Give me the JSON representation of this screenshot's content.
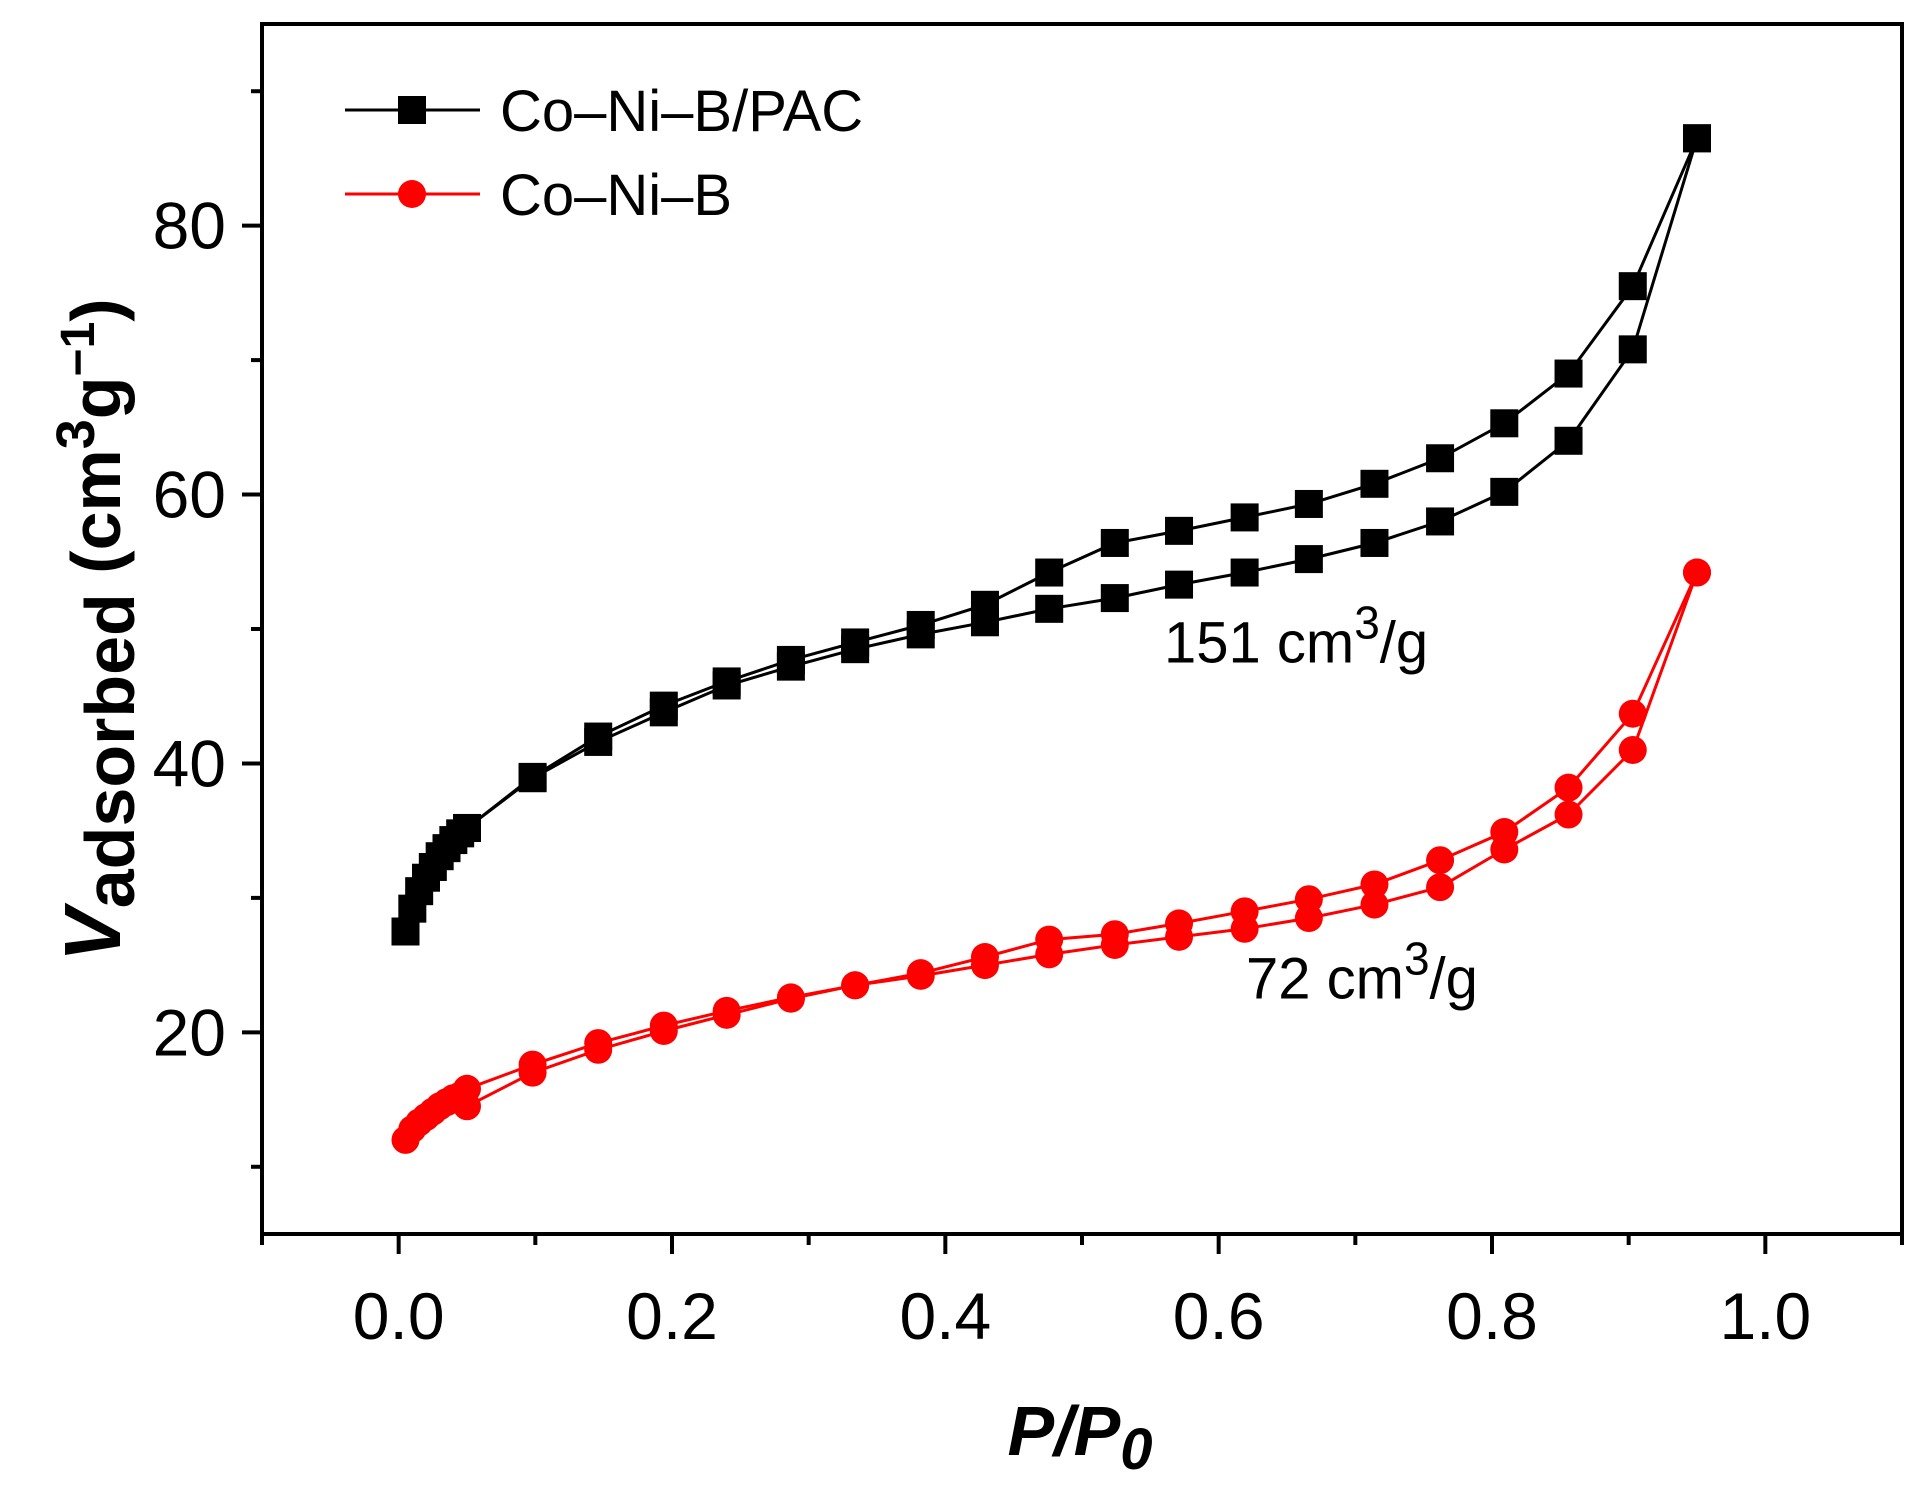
{
  "chart_data": {
    "type": "line",
    "title": "",
    "xlabel": {
      "main": "P/P",
      "sub": "0"
    },
    "ylabel": {
      "main": "V",
      "sub": "adsorbed",
      "unit": " (cm",
      "sup1": "3",
      "unit2": "g",
      "sup2": "−1",
      "close": ")"
    },
    "xlim": [
      -0.1,
      1.1
    ],
    "ylim": [
      5,
      95
    ],
    "x_ticks": [
      0.0,
      0.2,
      0.4,
      0.6,
      0.8,
      1.0
    ],
    "x_tick_labels": [
      "0.0",
      "0.2",
      "0.4",
      "0.6",
      "0.8",
      "1.0"
    ],
    "x_minor_ticks": [
      -0.1,
      0.1,
      0.3,
      0.5,
      0.7,
      0.9,
      1.1
    ],
    "y_ticks": [
      20,
      40,
      60,
      80
    ],
    "y_tick_labels": [
      "20",
      "40",
      "60",
      "80"
    ],
    "y_minor_ticks": [
      10,
      30,
      50,
      70,
      90
    ],
    "legend": {
      "position": "top-left"
    },
    "series": [
      {
        "name": "Co–Ni–B/PAC",
        "color": "#000000",
        "marker": "square",
        "adsorption": {
          "x": [
            0.005,
            0.01,
            0.015,
            0.02,
            0.025,
            0.03,
            0.035,
            0.04,
            0.045,
            0.05,
            0.098,
            0.146,
            0.194,
            0.24,
            0.287,
            0.334,
            0.382,
            0.429,
            0.476,
            0.524,
            0.571,
            0.619,
            0.666,
            0.714,
            0.762,
            0.809,
            0.856,
            0.903,
            0.95
          ],
          "y": [
            27.5,
            29.2,
            30.5,
            31.5,
            32.3,
            33.1,
            33.7,
            34.3,
            34.8,
            35.2,
            38.9,
            41.6,
            43.8,
            45.8,
            47.2,
            48.5,
            49.6,
            50.5,
            51.5,
            52.3,
            53.3,
            54.2,
            55.2,
            56.4,
            58.0,
            60.2,
            64.0,
            70.8,
            86.5
          ]
        },
        "desorption": {
          "x": [
            0.95,
            0.903,
            0.856,
            0.809,
            0.762,
            0.714,
            0.666,
            0.619,
            0.571,
            0.524,
            0.476,
            0.429,
            0.382,
            0.334,
            0.287,
            0.24,
            0.194,
            0.146,
            0.098,
            0.05
          ],
          "y": [
            86.5,
            75.5,
            69.0,
            65.3,
            62.7,
            60.8,
            59.3,
            58.3,
            57.3,
            56.4,
            54.2,
            51.8,
            50.3,
            49.0,
            47.7,
            46.1,
            44.3,
            42.0,
            39.0,
            35.2
          ]
        },
        "annotation": {
          "text": "151 cm",
          "sup": "3",
          "suffix": "/g",
          "x": 0.56,
          "y": 47.5
        }
      },
      {
        "name": "Co–Ni–B",
        "color": "#ff0000",
        "marker": "circle",
        "adsorption": {
          "x": [
            0.005,
            0.01,
            0.015,
            0.02,
            0.025,
            0.03,
            0.035,
            0.04,
            0.045,
            0.05,
            0.098,
            0.146,
            0.194,
            0.24,
            0.287,
            0.334,
            0.382,
            0.429,
            0.476,
            0.524,
            0.571,
            0.619,
            0.666,
            0.714,
            0.762,
            0.809,
            0.856,
            0.903,
            0.95
          ],
          "y": [
            12.0,
            12.8,
            13.3,
            13.7,
            14.1,
            14.5,
            14.8,
            15.1,
            15.3,
            14.5,
            17.0,
            18.7,
            20.1,
            21.3,
            22.5,
            23.5,
            24.2,
            25.0,
            25.8,
            26.5,
            27.1,
            27.7,
            28.5,
            29.5,
            30.8,
            33.6,
            36.2,
            41.0,
            54.2
          ]
        },
        "desorption": {
          "x": [
            0.95,
            0.903,
            0.856,
            0.809,
            0.762,
            0.714,
            0.666,
            0.619,
            0.571,
            0.524,
            0.476,
            0.429,
            0.382,
            0.334,
            0.287,
            0.24,
            0.194,
            0.146,
            0.098,
            0.05
          ],
          "y": [
            54.2,
            43.7,
            38.2,
            34.9,
            32.8,
            31.0,
            29.9,
            29.0,
            28.1,
            27.3,
            26.9,
            25.6,
            24.4,
            23.5,
            22.6,
            21.6,
            20.5,
            19.2,
            17.6,
            15.8
          ]
        },
        "annotation": {
          "text": "72 cm",
          "sup": "3",
          "suffix": "/g",
          "x": 0.62,
          "y": 22.5
        }
      }
    ]
  }
}
